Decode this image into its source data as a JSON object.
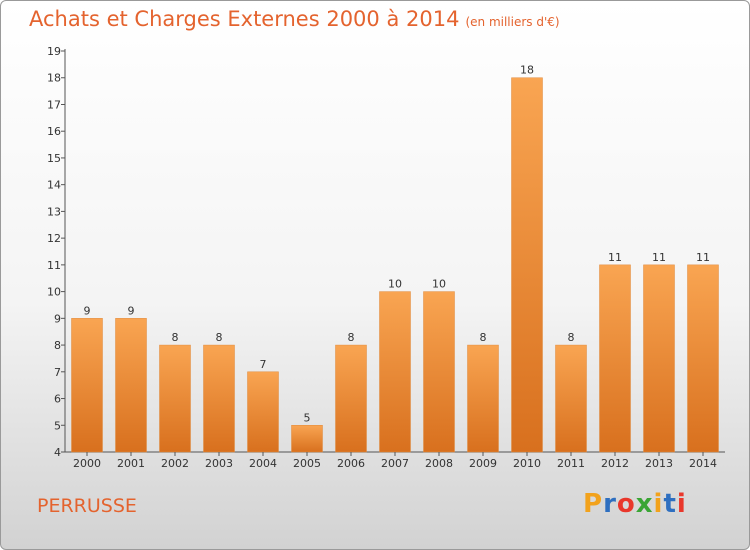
{
  "chart_data": {
    "type": "bar",
    "title": "Achats et Charges Externes 2000 à 2014",
    "subtitle": "(en milliers d'€)",
    "xlabel": "",
    "ylabel": "",
    "categories": [
      "2000",
      "2001",
      "2002",
      "2003",
      "2004",
      "2005",
      "2006",
      "2007",
      "2008",
      "2009",
      "2010",
      "2011",
      "2012",
      "2013",
      "2014"
    ],
    "values": [
      9,
      9,
      8,
      8,
      7,
      5,
      8,
      10,
      10,
      8,
      18,
      8,
      11,
      11,
      11
    ],
    "ylim": [
      4,
      19
    ],
    "yticks": [
      4,
      5,
      6,
      7,
      8,
      9,
      10,
      11,
      12,
      13,
      14,
      15,
      16,
      17,
      18,
      19
    ],
    "grid": false,
    "bar_color": "#f0923a"
  },
  "footer": {
    "place_name": "PERRUSSE",
    "logo_text": "Proxiti",
    "logo_colors": [
      "#f2a21c",
      "#2e6fc0",
      "#e9372b",
      "#3aa535",
      "#f2a21c",
      "#2e6fc0",
      "#e9372b"
    ]
  }
}
